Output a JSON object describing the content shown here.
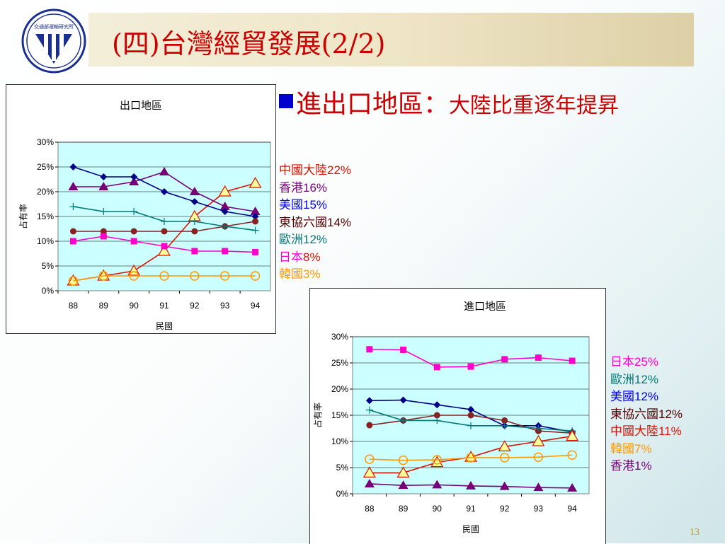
{
  "logo": {
    "text": "交通部運輸研究所"
  },
  "slide": {
    "title": "(四)台灣經貿發展(2/2)",
    "page_number": "13"
  },
  "bullet": {
    "lead": "進出口地區：",
    "rest": "大陸比重逐年提昇"
  },
  "colors": {
    "china": "#dd1100",
    "hongkong": "#770077",
    "usa": "#000088",
    "asean": "#882222",
    "europe": "#007777",
    "japan": "#ff00cc",
    "korea": "#ff9900",
    "plot_bg": "#ccffff"
  },
  "chart_data": [
    {
      "type": "line",
      "title": "出口地區",
      "xlabel": "民國",
      "ylabel": "占有率",
      "x": [
        "88",
        "89",
        "90",
        "91",
        "92",
        "93",
        "94"
      ],
      "ylim": [
        0,
        30
      ],
      "yticks": [
        "0%",
        "5%",
        "10%",
        "15%",
        "20%",
        "25%",
        "30%"
      ],
      "grid": true,
      "series": [
        {
          "name": "中國大陸",
          "color": "#dd1100",
          "marker": "triangle-open",
          "values": [
            2,
            3,
            4,
            8,
            15,
            20,
            21.7
          ]
        },
        {
          "name": "香港",
          "color": "#770077",
          "marker": "triangle",
          "values": [
            21,
            21,
            22,
            24,
            20,
            17,
            16
          ]
        },
        {
          "name": "美國",
          "color": "#000088",
          "marker": "diamond",
          "values": [
            25,
            23,
            23,
            20,
            18,
            16,
            15
          ]
        },
        {
          "name": "東協六國",
          "color": "#882222",
          "marker": "circle",
          "values": [
            12,
            12,
            12,
            12,
            12,
            13,
            14
          ]
        },
        {
          "name": "歐洲",
          "color": "#007777",
          "marker": "plus",
          "values": [
            17,
            16,
            16,
            14,
            14,
            13,
            12.2
          ]
        },
        {
          "name": "日本",
          "color": "#ff00cc",
          "marker": "square",
          "values": [
            10,
            11,
            10,
            9,
            8,
            8,
            7.8
          ]
        },
        {
          "name": "韓國",
          "color": "#ff9900",
          "marker": "circle-open",
          "values": [
            2,
            3,
            3,
            3,
            3,
            3,
            3
          ]
        }
      ],
      "legend": [
        {
          "name": "中國大陸",
          "value": "22%",
          "name_color": "#dd1100",
          "value_color": "#dd1100"
        },
        {
          "name": "香港",
          "value": "16%",
          "name_color": "#770077",
          "value_color": "#770077"
        },
        {
          "name": "美國",
          "value": "15%",
          "name_color": "#0000ee",
          "value_color": "#0000ee"
        },
        {
          "name": "東協六國",
          "value": "14%",
          "name_color": "#550000",
          "value_color": "#550000"
        },
        {
          "name": "歐洲",
          "value": "12%",
          "name_color": "#007777",
          "value_color": "#007777"
        },
        {
          "name": "日本",
          "value": "8%",
          "name_color": "#ff00cc",
          "value_color": "#dd1100"
        },
        {
          "name": "韓國",
          "value": "3%",
          "name_color": "#ff9900",
          "value_color": "#ff9900"
        }
      ]
    },
    {
      "type": "line",
      "title": "進口地區",
      "xlabel": "民國",
      "ylabel": "占有率",
      "x": [
        "88",
        "89",
        "90",
        "91",
        "92",
        "93",
        "94"
      ],
      "ylim": [
        0,
        30
      ],
      "yticks": [
        "0%",
        "5%",
        "10%",
        "15%",
        "20%",
        "25%",
        "30%"
      ],
      "grid": true,
      "series": [
        {
          "name": "日本",
          "color": "#ff00cc",
          "marker": "square",
          "values": [
            27.6,
            27.5,
            24.2,
            24.3,
            25.7,
            26,
            25.4
          ]
        },
        {
          "name": "美國",
          "color": "#000088",
          "marker": "diamond",
          "values": [
            17.8,
            17.9,
            17,
            16.1,
            13,
            13,
            11.8
          ]
        },
        {
          "name": "東協六國",
          "color": "#882222",
          "marker": "circle",
          "values": [
            13.1,
            14,
            15,
            15,
            14,
            12,
            11.6
          ]
        },
        {
          "name": "歐洲",
          "color": "#007777",
          "marker": "plus",
          "values": [
            16,
            14,
            14,
            13,
            13,
            12.5,
            12
          ]
        },
        {
          "name": "中國大陸",
          "color": "#dd1100",
          "marker": "triangle-open",
          "values": [
            4,
            4,
            6,
            7,
            9,
            10,
            11
          ]
        },
        {
          "name": "韓國",
          "color": "#ff9900",
          "marker": "circle-open",
          "values": [
            6.6,
            6.4,
            6.5,
            6.9,
            6.9,
            7,
            7.4
          ]
        },
        {
          "name": "香港",
          "color": "#770077",
          "marker": "triangle",
          "values": [
            1.9,
            1.6,
            1.7,
            1.5,
            1.4,
            1.2,
            1.1
          ]
        }
      ],
      "legend": [
        {
          "name": "日本",
          "value": "25%",
          "name_color": "#ff00cc",
          "value_color": "#ff00cc"
        },
        {
          "name": "歐洲",
          "value": "12%",
          "name_color": "#007777",
          "value_color": "#007777"
        },
        {
          "name": "美國",
          "value": "12%",
          "name_color": "#0000ee",
          "value_color": "#0000ee"
        },
        {
          "name": "東協六國",
          "value": "12%",
          "name_color": "#550000",
          "value_color": "#550000"
        },
        {
          "name": "中國大陸",
          "value": "11%",
          "name_color": "#dd1100",
          "value_color": "#dd1100"
        },
        {
          "name": "韓國",
          "value": "7%",
          "name_color": "#ff9900",
          "value_color": "#ff9900"
        },
        {
          "name": "香港",
          "value": "1%",
          "name_color": "#770077",
          "value_color": "#770077"
        }
      ]
    }
  ]
}
